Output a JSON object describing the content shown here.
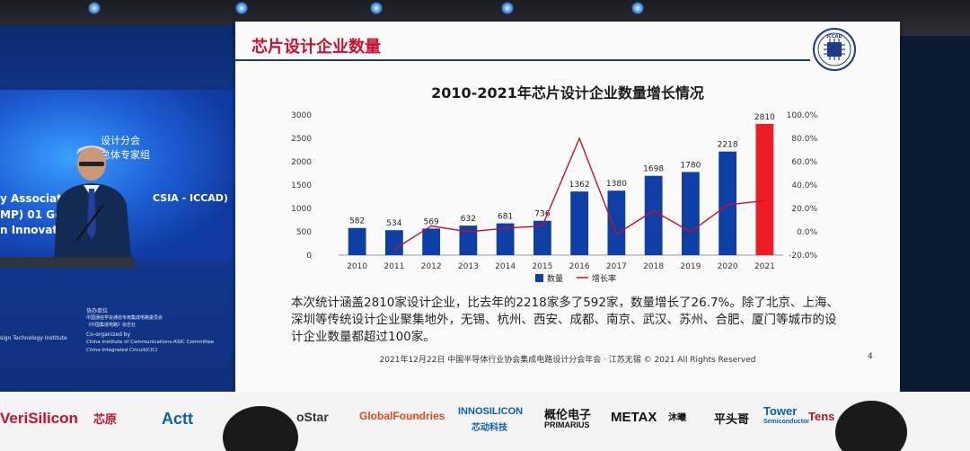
{
  "slide": {
    "title": "芯片设计企业数量",
    "logo_text": "ICCAD",
    "page_number": "4",
    "footer": "2021年12月22日 中国半导体行业协会集成电路设计分会年会 · 江苏无锡 © 2021 All Rights Reserved",
    "body_text": "本次统计涵盖2810家设计企业，比去年的2218家多了592家，数量增长了26.7%。除了北京、上海、深圳等传统设计企业聚集地外，无锡、杭州、西安、成都、南京、武汉、苏州、合肥、厦门等城市的设计企业数量都超过100家。"
  },
  "left_screen": {
    "line1": "设计分会",
    "line2": "总体专家组",
    "line3": "y Associatio",
    "line3b": "CSIA - ICCAD)",
    "line4": "MP) 01 Ger",
    "line5": "n Innovati",
    "co_label": "协办单位",
    "co_cn1": "中国通信学会通信专用集成电路委员会",
    "co_cn2": "《中国集成电路》杂志社",
    "co_en_label": "Co-organized by",
    "co_en1": "China Institute of Communications-ASIC Committee",
    "co_en2": "China Integrated Circuit(CIC)",
    "left_partial": "sign Technology Institute"
  },
  "sponsors": [
    "VeriSilicon",
    "芯原",
    "Actt",
    "oStar",
    "GlobalFoundries",
    "INNOSILICON",
    "芯动科技",
    "概伦电子",
    "PRIMARIUS",
    "METAX",
    "沐曦",
    "平头哥",
    "Tower",
    "Semiconductor",
    "Tens"
  ],
  "colors": {
    "bar": "#0d3fa6",
    "bar_highlight": "#ee1c24",
    "line": "#c8102e",
    "title_red": "#c8102e"
  },
  "chart_data": {
    "type": "bar",
    "title": "2010-2021年芯片设计企业数量增长情况",
    "categories": [
      "2010",
      "2011",
      "2012",
      "2013",
      "2014",
      "2015",
      "2016",
      "2017",
      "2018",
      "2019",
      "2020",
      "2021"
    ],
    "series": [
      {
        "name": "数量",
        "type": "bar",
        "axis": "left",
        "values": [
          582,
          534,
          569,
          632,
          681,
          736,
          1362,
          1380,
          1698,
          1780,
          2218,
          2810
        ]
      },
      {
        "name": "增长率",
        "type": "line",
        "axis": "right",
        "values": [
          null,
          -15.0,
          5.0,
          0.0,
          3.0,
          5.0,
          80.0,
          -2.0,
          18.0,
          0.0,
          23.0,
          26.7
        ]
      }
    ],
    "ylim": [
      0,
      3000
    ],
    "yticks": [
      "0",
      "500",
      "1000",
      "1500",
      "2000",
      "2500",
      "3000"
    ],
    "y2lim": [
      -20,
      100
    ],
    "y2ticks": [
      "-20.0%",
      "0.0%",
      "20.0%",
      "40.0%",
      "60.0%",
      "80.0%",
      "100.0%"
    ],
    "highlight_last": true,
    "legend_position": "bottom-center",
    "grid": false
  }
}
